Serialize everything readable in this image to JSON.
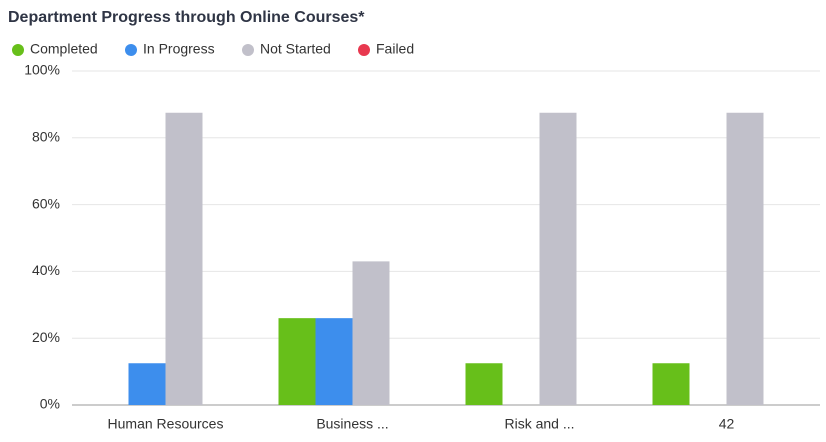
{
  "chart_data": {
    "type": "bar",
    "title": "Department Progress through Online Courses*",
    "categories": [
      "Human Resources",
      "Business ...",
      "Risk and ...",
      "42"
    ],
    "series": [
      {
        "name": "Completed",
        "color": "#67bf1a",
        "values": [
          0,
          26,
          12.5,
          12.5
        ]
      },
      {
        "name": "In Progress",
        "color": "#3d8eed",
        "values": [
          12.5,
          26,
          0,
          0
        ]
      },
      {
        "name": "Not Started",
        "color": "#c1c0ca",
        "values": [
          87.5,
          43,
          87.5,
          87.5
        ]
      },
      {
        "name": "Failed",
        "color": "#e8384f",
        "values": [
          0,
          0,
          0,
          0
        ]
      }
    ],
    "ylim": [
      0,
      100
    ],
    "yticks": [
      {
        "value": 0,
        "label": "0%"
      },
      {
        "value": 20,
        "label": "20%"
      },
      {
        "value": 40,
        "label": "40%"
      },
      {
        "value": 60,
        "label": "60%"
      },
      {
        "value": 80,
        "label": "80%"
      },
      {
        "value": 100,
        "label": "100%"
      }
    ],
    "grid": true,
    "legend": "top-left"
  }
}
